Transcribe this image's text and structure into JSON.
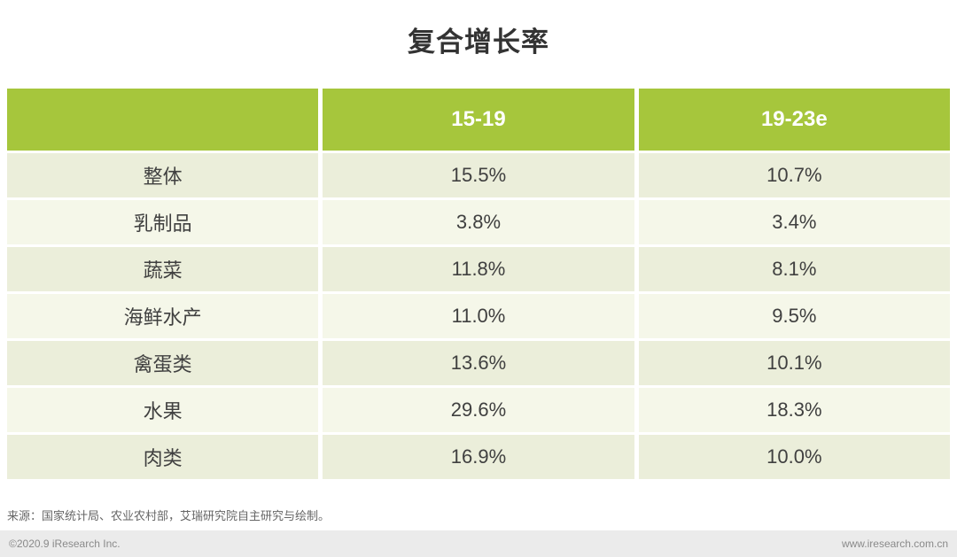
{
  "title": "复合增长率",
  "colors": {
    "header_green": "#a6c63c",
    "row_odd": "#ebeeda",
    "row_even": "#f5f7e9",
    "footer_bar": "#ebebeb"
  },
  "table": {
    "header": {
      "col0": "",
      "col1": "15-19",
      "col2": "19-23e"
    },
    "rows": [
      {
        "label": "整体",
        "v1": "15.5%",
        "v2": "10.7%"
      },
      {
        "label": "乳制品",
        "v1": "3.8%",
        "v2": "3.4%"
      },
      {
        "label": "蔬菜",
        "v1": "11.8%",
        "v2": "8.1%"
      },
      {
        "label": "海鲜水产",
        "v1": "11.0%",
        "v2": "9.5%"
      },
      {
        "label": "禽蛋类",
        "v1": "13.6%",
        "v2": "10.1%"
      },
      {
        "label": "水果",
        "v1": "29.6%",
        "v2": "18.3%"
      },
      {
        "label": "肉类",
        "v1": "16.9%",
        "v2": "10.0%"
      }
    ]
  },
  "footer": {
    "source": "来源：国家统计局、农业农村部，艾瑞研究院自主研究与绘制。",
    "copyright": "©2020.9 iResearch Inc.",
    "website": "www.iresearch.com.cn"
  },
  "chart_data": {
    "type": "table",
    "title": "复合增长率",
    "columns": [
      "",
      "15-19",
      "19-23e"
    ],
    "categories": [
      "整体",
      "乳制品",
      "蔬菜",
      "海鲜水产",
      "禽蛋类",
      "水果",
      "肉类"
    ],
    "series": [
      {
        "name": "15-19",
        "values": [
          15.5,
          3.8,
          11.8,
          11.0,
          13.6,
          29.6,
          16.9
        ]
      },
      {
        "name": "19-23e",
        "values": [
          10.7,
          3.4,
          8.1,
          9.5,
          10.1,
          18.3,
          10.0
        ]
      }
    ],
    "unit": "%",
    "layout": {
      "grid": false,
      "legend": "none",
      "header_color": "#a6c63c"
    }
  }
}
